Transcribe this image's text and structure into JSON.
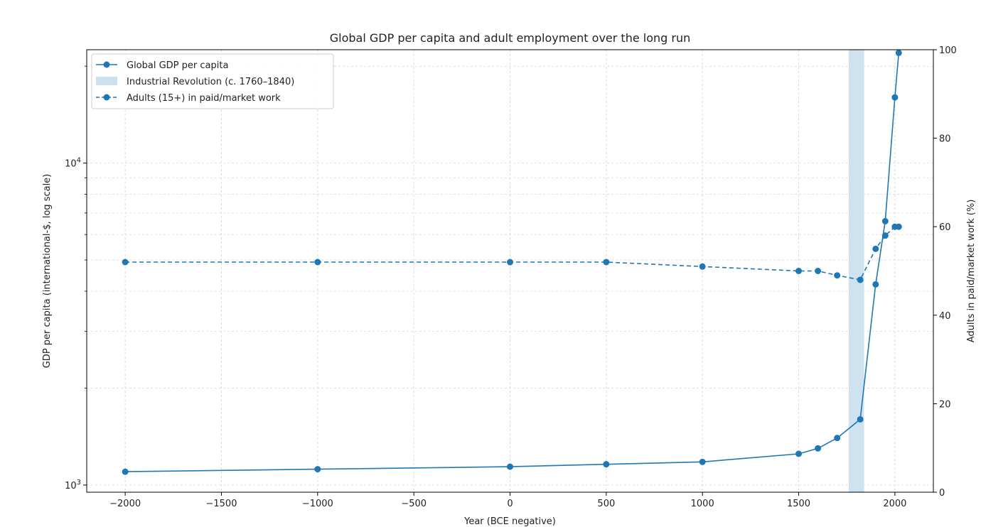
{
  "chart_data": {
    "type": "line",
    "title": "Global GDP per capita and adult employment over the long run",
    "xlabel": "Year (BCE negative)",
    "ylabel_left": "GDP per capita (international-$, log scale)",
    "ylabel_right": "Adults in paid/market work (%)",
    "xlim": [
      -2200,
      2200
    ],
    "ylim_left": [
      950,
      22500
    ],
    "yscale_left": "log",
    "ylim_right": [
      0,
      100
    ],
    "grid": true,
    "legend_position": "top-left",
    "accent_color": "#1f77b4",
    "band_color": "#cce0ee",
    "x_ticks": [
      -2000,
      -1500,
      -1000,
      -500,
      0,
      500,
      1000,
      1500,
      2000
    ],
    "x_tick_labels": [
      "−2000",
      "−1500",
      "−1000",
      "−500",
      "0",
      "500",
      "1000",
      "1500",
      "2000"
    ],
    "y_left_major_ticks": [
      1000,
      10000
    ],
    "y_left_tick_labels": [
      "10",
      "10"
    ],
    "y_left_tick_exponents": [
      "3",
      "4"
    ],
    "y_right_ticks": [
      0,
      20,
      40,
      60,
      80,
      100
    ],
    "y_right_tick_labels": [
      "0",
      "20",
      "40",
      "60",
      "80",
      "100"
    ],
    "band": {
      "label": "Industrial Revolution (c. 1760–1840)",
      "x_start": 1760,
      "x_end": 1840
    },
    "series": [
      {
        "name": "Global GDP per capita",
        "axis": "left",
        "style": "solid",
        "x": [
          -2000,
          -1000,
          0,
          500,
          1000,
          1500,
          1600,
          1700,
          1820,
          1900,
          1950,
          2000,
          2020
        ],
        "y": [
          1100,
          1120,
          1140,
          1160,
          1180,
          1250,
          1300,
          1400,
          1600,
          4200,
          6600,
          16000,
          22000
        ]
      },
      {
        "name": "Adults (15+) in paid/market work",
        "axis": "right",
        "style": "dashed",
        "x": [
          -2000,
          -1000,
          0,
          500,
          1000,
          1500,
          1600,
          1700,
          1820,
          1900,
          1950,
          2000,
          2020
        ],
        "y": [
          52,
          52,
          52,
          52,
          51,
          50,
          50,
          49,
          48,
          55,
          58,
          60,
          60
        ]
      }
    ]
  }
}
